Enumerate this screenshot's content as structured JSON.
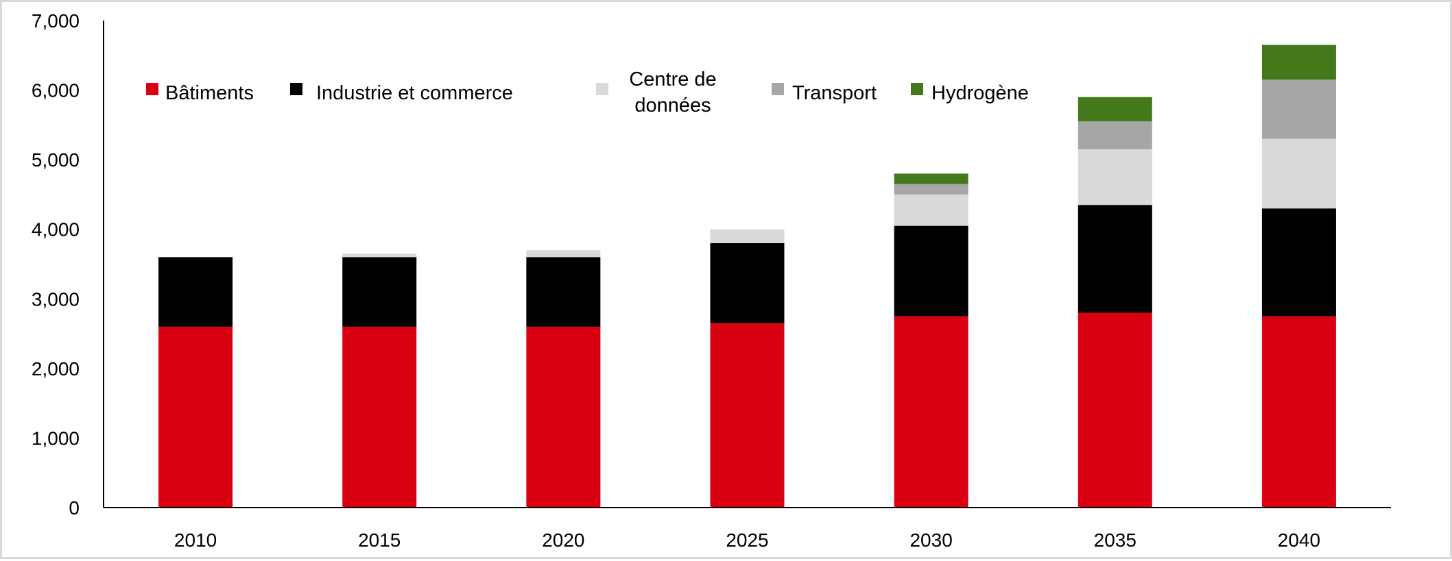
{
  "chart_data": {
    "type": "bar",
    "stacked": true,
    "title": "",
    "xlabel": "",
    "ylabel": "",
    "ylim": [
      0,
      7000
    ],
    "yticks": [
      "0",
      "1,000",
      "2,000",
      "3,000",
      "4,000",
      "5,000",
      "6,000",
      "7,000"
    ],
    "ytick_values": [
      0,
      1000,
      2000,
      3000,
      4000,
      5000,
      6000,
      7000
    ],
    "categories": [
      "2010",
      "2015",
      "2020",
      "2025",
      "2030",
      "2035",
      "2040"
    ],
    "grid": false,
    "legend_placement": "top",
    "series": [
      {
        "name": "Bâtiments",
        "color": "#d90012",
        "values": [
          2600,
          2600,
          2600,
          2650,
          2750,
          2800,
          2750
        ]
      },
      {
        "name": "Industrie et commerce",
        "color": "#000000",
        "values": [
          1000,
          1000,
          1000,
          1150,
          1300,
          1550,
          1550
        ]
      },
      {
        "name": "Centre de données",
        "name_lines": [
          "Centre de",
          "données"
        ],
        "color": "#d9d9d9",
        "values": [
          0,
          50,
          100,
          200,
          450,
          800,
          1000
        ]
      },
      {
        "name": "Transport",
        "color": "#a6a6a6",
        "values": [
          0,
          0,
          0,
          0,
          150,
          400,
          850
        ]
      },
      {
        "name": "Hydrogène",
        "color": "#43791b",
        "values": [
          0,
          0,
          0,
          0,
          150,
          350,
          500
        ]
      }
    ]
  }
}
